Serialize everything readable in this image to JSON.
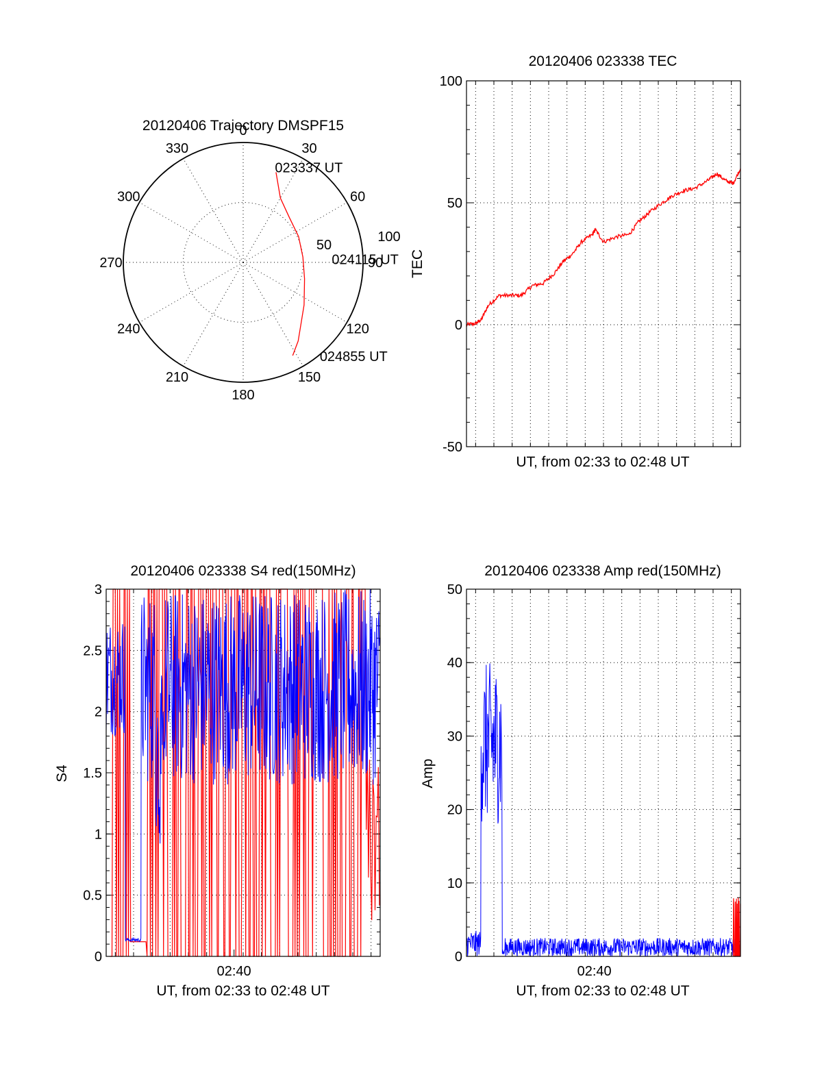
{
  "chart_data": [
    {
      "type": "polar",
      "title": "20120406 Trajectory DMSPF15",
      "azimuth_labels": [
        "0",
        "30",
        "60",
        "90",
        "120",
        "150",
        "180",
        "210",
        "240",
        "270",
        "300",
        "330"
      ],
      "radial_labels": [
        "50",
        "100"
      ],
      "track_color": "#ff0000",
      "track": {
        "points": [
          {
            "az": 20,
            "zenith": 80
          },
          {
            "az": 30,
            "zenith": 62
          },
          {
            "az": 45,
            "zenith": 54
          },
          {
            "az": 65,
            "zenith": 51
          },
          {
            "az": 85,
            "zenith": 50
          },
          {
            "az": 105,
            "zenith": 53
          },
          {
            "az": 125,
            "zenith": 62
          },
          {
            "az": 145,
            "zenith": 80
          },
          {
            "az": 152,
            "zenith": 88
          }
        ],
        "annotations": [
          {
            "text": "023337 UT",
            "az": 20,
            "zenith": 80
          },
          {
            "text": "024115 UT",
            "az": 85,
            "zenith": 50
          },
          {
            "text": "024855 UT",
            "az": 152,
            "zenith": 88
          }
        ]
      }
    },
    {
      "type": "line",
      "title": "20120406 023338 TEC",
      "xlabel": "UT, from 02:33 to 02:48 UT",
      "ylabel": "TEC",
      "ylim": [
        -50,
        100
      ],
      "yticks": [
        "-50",
        "0",
        "50",
        "100"
      ],
      "xlim": [
        0,
        15
      ],
      "grid": true,
      "series": [
        {
          "color": "#ff0000",
          "x": [
            0.0,
            0.5,
            0.8,
            1.2,
            1.8,
            2.4,
            3.0,
            3.6,
            4.2,
            4.8,
            5.3,
            5.8,
            6.3,
            6.9,
            7.05,
            7.5,
            8.2,
            8.9,
            9.4,
            10.0,
            10.7,
            11.3,
            11.9,
            12.5,
            13.2,
            13.7,
            14.2,
            14.6,
            15.0
          ],
          "y": [
            0,
            0.5,
            2,
            8,
            12,
            12,
            12,
            16,
            17,
            21,
            26,
            29,
            34,
            37,
            39,
            34,
            36,
            37,
            42,
            46,
            50,
            53,
            55,
            56,
            59,
            62,
            59,
            58,
            64
          ]
        }
      ]
    },
    {
      "type": "line",
      "title": "20120406 023338 S4 red(150MHz)",
      "xlabel": "UT, from 02:33 to 02:48 UT",
      "ylabel": "S4",
      "ylim": [
        0,
        3
      ],
      "yticks": [
        "0",
        "0.5",
        "1",
        "1.5",
        "2",
        "2.5",
        "3"
      ],
      "xticks": [
        {
          "x": 7,
          "label": "02:40"
        }
      ],
      "xlim": [
        0,
        15
      ],
      "grid": true,
      "series": [
        {
          "color": "#ff0000",
          "x_range": [
            0.2,
            15.0
          ],
          "y_range": [
            0,
            3
          ]
        },
        {
          "color": "#0000ff",
          "x_range": [
            0.0,
            15.0
          ],
          "y_range": [
            0.12,
            3
          ]
        }
      ]
    },
    {
      "type": "line",
      "title": "20120406 023338 Amp red(150MHz)",
      "xlabel": "UT, from 02:33 to 02:48 UT",
      "ylabel": "Amp",
      "ylim": [
        0,
        50
      ],
      "yticks": [
        "0",
        "10",
        "20",
        "30",
        "40",
        "50"
      ],
      "xticks": [
        {
          "x": 7,
          "label": "02:40"
        }
      ],
      "xlim": [
        0,
        15
      ],
      "grid": true,
      "series": [
        {
          "color": "#0000ff",
          "x_range": [
            0.0,
            15.0
          ],
          "y_range": [
            0,
            42
          ]
        },
        {
          "color": "#ff0000",
          "x_range": [
            14.6,
            15.0
          ],
          "y_range": [
            0,
            8
          ]
        }
      ]
    }
  ]
}
